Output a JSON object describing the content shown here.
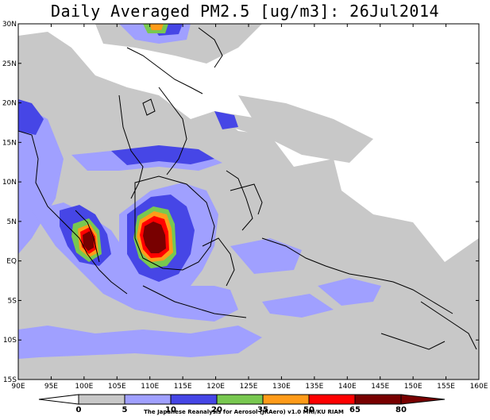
{
  "title": "Daily Averaged PM2.5 [ug/m3]: 26Jul2014",
  "map": {
    "lon_range": [
      90,
      160
    ],
    "lat_range": [
      -15,
      30
    ],
    "x_ticks": [
      {
        "v": 90,
        "label": "90E"
      },
      {
        "v": 95,
        "label": "95E"
      },
      {
        "v": 100,
        "label": "100E"
      },
      {
        "v": 105,
        "label": "105E"
      },
      {
        "v": 110,
        "label": "110E"
      },
      {
        "v": 115,
        "label": "115E"
      },
      {
        "v": 120,
        "label": "120E"
      },
      {
        "v": 125,
        "label": "125E"
      },
      {
        "v": 130,
        "label": "130E"
      },
      {
        "v": 135,
        "label": "135E"
      },
      {
        "v": 140,
        "label": "140E"
      },
      {
        "v": 145,
        "label": "145E"
      },
      {
        "v": 150,
        "label": "150E"
      },
      {
        "v": 155,
        "label": "155E"
      },
      {
        "v": 160,
        "label": "160E"
      }
    ],
    "y_ticks": [
      {
        "v": 30,
        "label": "30N"
      },
      {
        "v": 25,
        "label": "25N"
      },
      {
        "v": 20,
        "label": "20N"
      },
      {
        "v": 15,
        "label": "15N"
      },
      {
        "v": 10,
        "label": "10N"
      },
      {
        "v": 5,
        "label": "5N"
      },
      {
        "v": 0,
        "label": "EQ"
      },
      {
        "v": -5,
        "label": "5S"
      },
      {
        "v": -10,
        "label": "10S"
      },
      {
        "v": -15,
        "label": "15S"
      }
    ]
  },
  "colorbar": {
    "levels": [
      "0",
      "5",
      "10",
      "20",
      "35",
      "50",
      "65",
      "80"
    ],
    "colors": [
      "#ffffff",
      "#c8c8c8",
      "#a0a0ff",
      "#4646e6",
      "#78c850",
      "#ff9b19",
      "#ff0000",
      "#780000"
    ],
    "credit": "The Japanese Reanalysis for Aerosol (JRAero) v1.0 MRI/KU RIAM"
  }
}
